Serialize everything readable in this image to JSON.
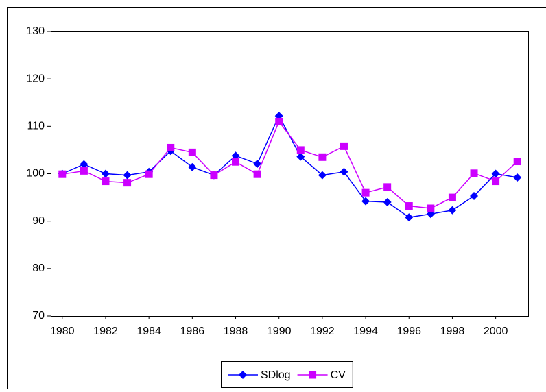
{
  "chart_data": {
    "type": "line",
    "x": [
      1980,
      1981,
      1982,
      1983,
      1984,
      1985,
      1986,
      1987,
      1988,
      1989,
      1990,
      1991,
      1992,
      1993,
      1994,
      1995,
      1996,
      1997,
      1998,
      1999,
      2000,
      2001
    ],
    "series": [
      {
        "name": "SDlog",
        "color": "#0000ff",
        "marker": "diamond",
        "values": [
          100,
          102,
          100,
          99.7,
          100.4,
          104.8,
          101.4,
          99.7,
          103.8,
          102.1,
          112.2,
          103.6,
          99.7,
          100.4,
          94.2,
          94,
          90.8,
          91.5,
          92.3,
          95.3,
          100,
          99.2
        ]
      },
      {
        "name": "CV",
        "color": "#cc00ff",
        "marker": "square",
        "values": [
          99.9,
          100.6,
          98.4,
          98.1,
          99.9,
          105.5,
          104.5,
          99.7,
          102.5,
          99.9,
          111,
          105,
          103.5,
          105.8,
          96,
          97.2,
          93.2,
          92.7,
          95,
          100.1,
          98.4,
          102.6
        ]
      }
    ],
    "xlim": [
      1979.5,
      2001.5
    ],
    "xticks": [
      1980,
      1982,
      1984,
      1986,
      1988,
      1990,
      1992,
      1994,
      1996,
      1998,
      2000
    ],
    "ylim": [
      70,
      130
    ],
    "yticks": [
      70,
      80,
      90,
      100,
      110,
      120,
      130
    ],
    "grid": false,
    "legend": "bottom"
  }
}
